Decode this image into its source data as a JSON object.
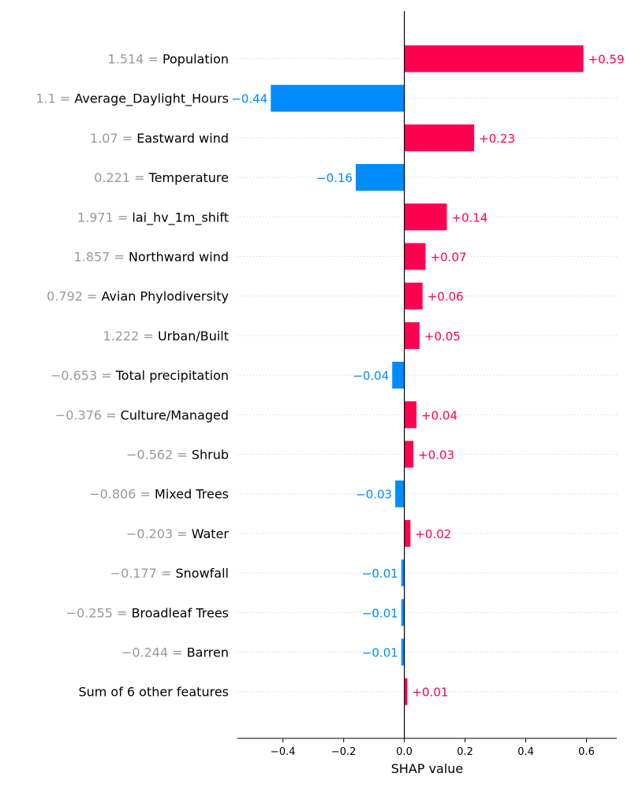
{
  "chart_data": {
    "type": "bar",
    "xlabel": "SHAP value",
    "xlim": [
      -0.55,
      0.7
    ],
    "xticks": [
      {
        "value": -0.4,
        "label": "−0.4"
      },
      {
        "value": -0.2,
        "label": "−0.2"
      },
      {
        "value": 0.0,
        "label": "0.0"
      },
      {
        "value": 0.2,
        "label": "0.2"
      },
      {
        "value": 0.4,
        "label": "0.4"
      },
      {
        "value": 0.6,
        "label": "0.6"
      }
    ],
    "grid": "horizontal dotted",
    "colors": {
      "positive": "#ff0051",
      "negative": "#008bfb",
      "feature_value_text": "#999999",
      "feature_name_text": "#000000"
    },
    "features": [
      {
        "value_text": "1.514",
        "name": "Population",
        "shap": 0.59,
        "label": "+0.59"
      },
      {
        "value_text": "1.1",
        "name": "Average_Daylight_Hours",
        "shap": -0.44,
        "label": "−0.44"
      },
      {
        "value_text": "1.07",
        "name": "Eastward wind",
        "shap": 0.23,
        "label": "+0.23"
      },
      {
        "value_text": "0.221",
        "name": "Temperature",
        "shap": -0.16,
        "label": "−0.16"
      },
      {
        "value_text": "1.971",
        "name": "lai_hv_1m_shift",
        "shap": 0.14,
        "label": "+0.14"
      },
      {
        "value_text": "1.857",
        "name": "Northward wind",
        "shap": 0.07,
        "label": "+0.07"
      },
      {
        "value_text": "0.792",
        "name": "Avian Phylodiversity",
        "shap": 0.06,
        "label": "+0.06"
      },
      {
        "value_text": "1.222",
        "name": "Urban/Built",
        "shap": 0.05,
        "label": "+0.05"
      },
      {
        "value_text": "−0.653",
        "name": "Total precipitation",
        "shap": -0.04,
        "label": "−0.04"
      },
      {
        "value_text": "−0.376",
        "name": "Culture/Managed",
        "shap": 0.04,
        "label": "+0.04"
      },
      {
        "value_text": "−0.562",
        "name": "Shrub",
        "shap": 0.03,
        "label": "+0.03"
      },
      {
        "value_text": "−0.806",
        "name": "Mixed Trees",
        "shap": -0.03,
        "label": "−0.03"
      },
      {
        "value_text": "−0.203",
        "name": "Water",
        "shap": 0.02,
        "label": "+0.02"
      },
      {
        "value_text": "−0.177",
        "name": "Snowfall",
        "shap": -0.01,
        "label": "−0.01"
      },
      {
        "value_text": "−0.255",
        "name": "Broadleaf Trees",
        "shap": -0.01,
        "label": "−0.01"
      },
      {
        "value_text": "−0.244",
        "name": "Barren",
        "shap": -0.01,
        "label": "−0.01"
      },
      {
        "value_text": "",
        "name": "Sum of 6 other features",
        "shap": 0.01,
        "label": "+0.01"
      }
    ]
  }
}
